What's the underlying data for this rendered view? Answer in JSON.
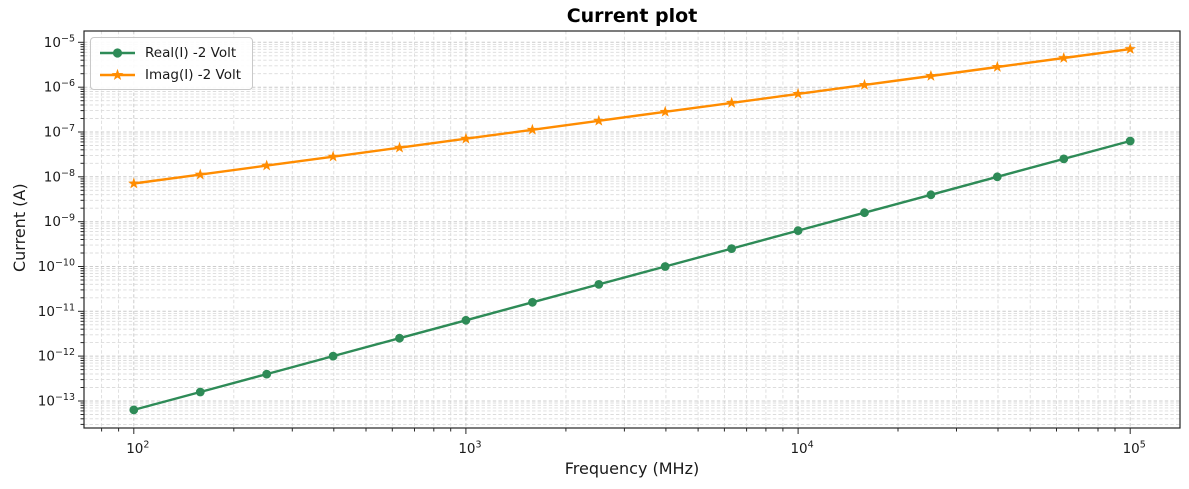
{
  "chart_data": {
    "type": "line",
    "title": "Current plot",
    "xlabel": "Frequency (MHz)",
    "ylabel": "Current (A)",
    "x_scale": "log",
    "y_scale": "log",
    "grid": {
      "which": "both",
      "style": "dashed"
    },
    "legend_position": "upper left",
    "x_tick_exponents": [
      2,
      3,
      4,
      5
    ],
    "y_tick_exponents": [
      -5,
      -6,
      -7,
      -8,
      -9,
      -10,
      -11,
      -12,
      -13
    ],
    "xlim_log10": [
      1.85,
      5.15
    ],
    "ylim_log10": [
      -13.603,
      -4.747
    ],
    "x": [
      100,
      158.5,
      251.2,
      398.1,
      631.0,
      1000,
      1585,
      2512,
      3981,
      6310,
      10000,
      15849,
      25119,
      39811,
      63096,
      100000
    ],
    "series": [
      {
        "name": "Real(I) -2 Volt",
        "color": "#2e8b57",
        "marker": "circle",
        "values": [
          6.31e-14,
          1.585e-13,
          3.981e-13,
          1e-12,
          2.512e-12,
          6.31e-12,
          1.585e-11,
          3.981e-11,
          1e-10,
          2.512e-10,
          6.31e-10,
          1.585e-09,
          3.981e-09,
          1e-08,
          2.512e-08,
          6.31e-08
        ]
      },
      {
        "name": "Imag(I) -2 Volt",
        "color": "#ff8c00",
        "marker": "star",
        "values": [
          7.08e-09,
          1.122e-08,
          1.778e-08,
          2.818e-08,
          4.467e-08,
          7.08e-08,
          1.122e-07,
          1.778e-07,
          2.818e-07,
          4.467e-07,
          7.08e-07,
          1.122e-06,
          1.778e-06,
          2.818e-06,
          4.467e-06,
          7.08e-06
        ]
      }
    ]
  },
  "style": {
    "grid_major_color": "#cccccc",
    "grid_minor_color": "#dcdcdc",
    "spine_color": "#262626",
    "tick_color": "#262626",
    "text_color": "#1a1a1a",
    "background": "#ffffff"
  }
}
